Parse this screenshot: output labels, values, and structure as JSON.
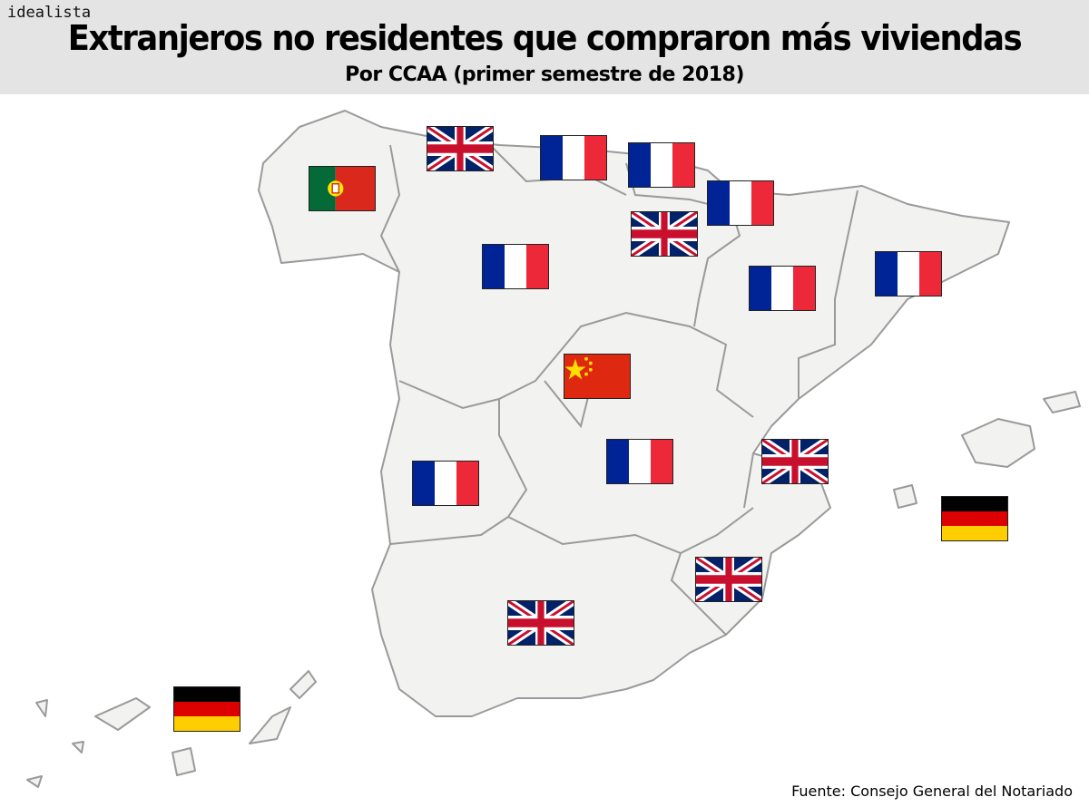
{
  "header": {
    "brand": "idealista",
    "title": "Extranjeros no residentes que compraron más viviendas",
    "subtitle": "Por CCAA (primer semestre de 2018)"
  },
  "map": {
    "fill_color": "#f2f2f0",
    "border_color": "#9a9a9a",
    "flags": [
      {
        "country": "portugal-flag"
      },
      {
        "country": "uk-flag"
      },
      {
        "country": "france-flag"
      },
      {
        "country": "france-flag"
      },
      {
        "country": "france-flag"
      },
      {
        "country": "uk-flag"
      },
      {
        "country": "france-flag"
      },
      {
        "country": "france-flag"
      },
      {
        "country": "france-flag"
      },
      {
        "country": "china-flag"
      },
      {
        "country": "france-flag"
      },
      {
        "country": "france-flag"
      },
      {
        "country": "uk-flag"
      },
      {
        "country": "germany-flag"
      },
      {
        "country": "uk-flag"
      },
      {
        "country": "uk-flag"
      },
      {
        "country": "germany-flag"
      }
    ]
  },
  "footer": {
    "source": "Fuente: Consejo General del Notariado"
  }
}
